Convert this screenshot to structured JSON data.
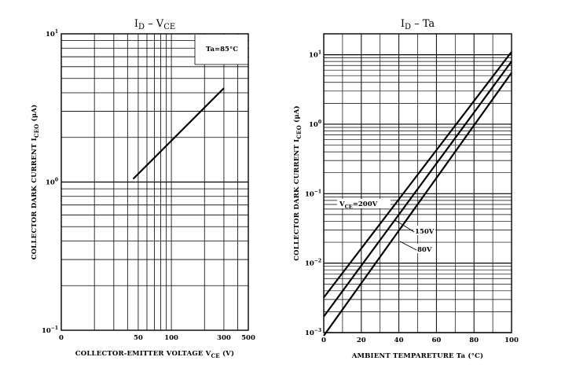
{
  "chart_data": [
    {
      "type": "line",
      "title": "I_D – V_CE",
      "title_parts": {
        "main": "I",
        "main_sub": "D",
        "sep": " – ",
        "second": "V",
        "second_sub": "CE"
      },
      "xlabel": "COLLECTOR-EMITTER VOLTAGE  V_CE  (V)",
      "xlabel_parts": {
        "main": "COLLECTOR-EMITTER VOLTAGE  V",
        "sub": "CE",
        "unit": "  (V)"
      },
      "ylabel": "COLLECTOR DARK CURRENT  I_CEO  (μA)",
      "ylabel_parts": {
        "main": "COLLECTOR DARK CURRENT  I",
        "sub": "CEO",
        "unit": "  (μA)"
      },
      "x_scale": "log",
      "y_scale": "log",
      "xlim": [
        0,
        500
      ],
      "ylim": [
        0.1,
        10
      ],
      "grid": true,
      "annotation": "Ta=85°C",
      "x_ticks": [
        {
          "value": 0,
          "label": "0"
        },
        {
          "value": 50,
          "label": "50"
        },
        {
          "value": 100,
          "label": "100"
        },
        {
          "value": 300,
          "label": "300"
        },
        {
          "value": 500,
          "label": "500"
        }
      ],
      "y_ticks": [
        {
          "value": 0.1,
          "base": "10",
          "exp": "−1"
        },
        {
          "value": 1,
          "base": "10",
          "exp": "0"
        },
        {
          "value": 10,
          "base": "10",
          "exp": "1"
        }
      ],
      "series": [
        {
          "x": [
            45,
            300
          ],
          "y": [
            1.05,
            4.3
          ]
        }
      ]
    },
    {
      "type": "line",
      "title": "I_D – Ta",
      "title_parts": {
        "main": "I",
        "main_sub": "D",
        "sep": " – ",
        "second": "Ta",
        "second_sub": ""
      },
      "xlabel": "AMBIENT TEMPARETURE  Ta  (°C)",
      "xlabel_parts": {
        "main": "AMBIENT TEMPARETURE  Ta",
        "sub": "",
        "unit": "  (°C)"
      },
      "ylabel": "COLLECTOR DARK CURRENT  I_CEO  (μA)",
      "ylabel_parts": {
        "main": "COLLECTOR DARK CURRENT  I",
        "sub": "CEO",
        "unit": "  (μA)"
      },
      "x_scale": "linear",
      "y_scale": "log",
      "xlim": [
        0,
        100
      ],
      "ylim": [
        0.001,
        20
      ],
      "grid": true,
      "x_ticks": [
        {
          "value": 0,
          "label": "0"
        },
        {
          "value": 20,
          "label": "20"
        },
        {
          "value": 40,
          "label": "40"
        },
        {
          "value": 60,
          "label": "60"
        },
        {
          "value": 80,
          "label": "80"
        },
        {
          "value": 100,
          "label": "100"
        }
      ],
      "y_ticks": [
        {
          "value": 0.001,
          "base": "10",
          "exp": "−3"
        },
        {
          "value": 0.01,
          "base": "10",
          "exp": "−2"
        },
        {
          "value": 0.1,
          "base": "10",
          "exp": "−1"
        },
        {
          "value": 1,
          "base": "10",
          "exp": "0"
        },
        {
          "value": 10,
          "base": "10",
          "exp": "1"
        }
      ],
      "series": [
        {
          "name": "V_CE=200V",
          "label_parts": {
            "main": "V",
            "sub": "CE",
            "rest": "=200V"
          },
          "x": [
            0,
            100
          ],
          "y": [
            0.0032,
            11
          ]
        },
        {
          "name": "150V",
          "label_parts": {
            "main": "150V",
            "sub": "",
            "rest": ""
          },
          "x": [
            0,
            100
          ],
          "y": [
            0.0017,
            8.0
          ]
        },
        {
          "name": "80V",
          "label_parts": {
            "main": "80V",
            "sub": "",
            "rest": ""
          },
          "x": [
            0,
            100
          ],
          "y": [
            0.0009,
            5.5
          ]
        }
      ]
    }
  ]
}
